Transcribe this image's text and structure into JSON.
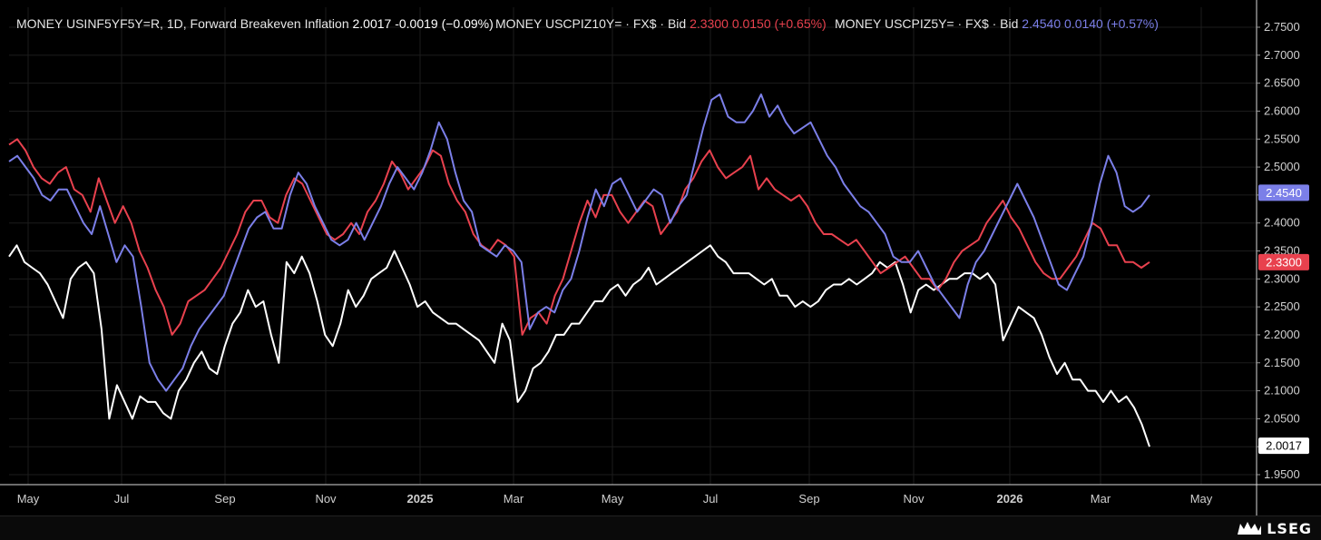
{
  "chart_data": {
    "type": "line",
    "x_axis_ticks": [
      "May",
      "Jul",
      "Sep",
      "Nov",
      "2025",
      "Mar",
      "May",
      "Jul",
      "Sep",
      "Nov",
      "2026",
      "Mar",
      "May"
    ],
    "y_axis_ticks": [
      "2.7500",
      "2.7000",
      "2.6500",
      "2.6000",
      "2.5500",
      "2.5000",
      "2.4500",
      "2.4000",
      "2.3500",
      "2.3000",
      "2.2500",
      "2.2000",
      "2.1500",
      "2.1000",
      "2.0500",
      "2.0000",
      "1.9500"
    ],
    "ylim": [
      1.94,
      2.77
    ],
    "grid": true,
    "legend": "top-left",
    "series": [
      {
        "name": "MONEY USINF5YF5Y=R, 1D, Forward Breakeven Inflation",
        "last": "2.0017",
        "change": "-0.0019",
        "change_pct": "(−0.09%)",
        "color": "#ffffff",
        "values": [
          2.34,
          2.36,
          2.33,
          2.32,
          2.31,
          2.29,
          2.26,
          2.23,
          2.3,
          2.32,
          2.33,
          2.31,
          2.21,
          2.05,
          2.11,
          2.08,
          2.05,
          2.09,
          2.08,
          2.08,
          2.06,
          2.05,
          2.1,
          2.12,
          2.15,
          2.17,
          2.14,
          2.13,
          2.18,
          2.22,
          2.24,
          2.28,
          2.25,
          2.26,
          2.2,
          2.15,
          2.33,
          2.31,
          2.34,
          2.31,
          2.26,
          2.2,
          2.18,
          2.22,
          2.28,
          2.25,
          2.27,
          2.3,
          2.31,
          2.32,
          2.35,
          2.32,
          2.29,
          2.25,
          2.26,
          2.24,
          2.23,
          2.22,
          2.22,
          2.21,
          2.2,
          2.19,
          2.17,
          2.15,
          2.22,
          2.19,
          2.08,
          2.1,
          2.14,
          2.15,
          2.17,
          2.2,
          2.2,
          2.22,
          2.22,
          2.24,
          2.26,
          2.26,
          2.28,
          2.29,
          2.27,
          2.29,
          2.3,
          2.32,
          2.29,
          2.3,
          2.31,
          2.32,
          2.33,
          2.34,
          2.35,
          2.36,
          2.34,
          2.33,
          2.31,
          2.31,
          2.31,
          2.3,
          2.29,
          2.3,
          2.27,
          2.27,
          2.25,
          2.26,
          2.25,
          2.26,
          2.28,
          2.29,
          2.29,
          2.3,
          2.29,
          2.3,
          2.31,
          2.33,
          2.32,
          2.33,
          2.29,
          2.24,
          2.28,
          2.29,
          2.28,
          2.29,
          2.3,
          2.3,
          2.31,
          2.31,
          2.3,
          2.31,
          2.29,
          2.19,
          2.22,
          2.25,
          2.24,
          2.23,
          2.2,
          2.16,
          2.13,
          2.15,
          2.12,
          2.12,
          2.1,
          2.1,
          2.08,
          2.1,
          2.08,
          2.09,
          2.07,
          2.04,
          2.0
        ]
      },
      {
        "name": "MONEY USCPIZ10Y= · FX$ · Bid",
        "last": "2.3300",
        "change": "0.0150",
        "change_pct": "(+0.65%)",
        "color": "#e8414e",
        "values": [
          2.54,
          2.55,
          2.53,
          2.5,
          2.48,
          2.47,
          2.49,
          2.5,
          2.46,
          2.45,
          2.42,
          2.48,
          2.44,
          2.4,
          2.43,
          2.4,
          2.35,
          2.32,
          2.28,
          2.25,
          2.2,
          2.22,
          2.26,
          2.27,
          2.28,
          2.3,
          2.32,
          2.35,
          2.38,
          2.42,
          2.44,
          2.44,
          2.41,
          2.4,
          2.45,
          2.48,
          2.47,
          2.44,
          2.41,
          2.38,
          2.37,
          2.38,
          2.4,
          2.38,
          2.42,
          2.44,
          2.47,
          2.51,
          2.49,
          2.46,
          2.48,
          2.5,
          2.53,
          2.52,
          2.47,
          2.44,
          2.42,
          2.38,
          2.36,
          2.35,
          2.37,
          2.36,
          2.34,
          2.2,
          2.23,
          2.24,
          2.22,
          2.27,
          2.3,
          2.35,
          2.4,
          2.44,
          2.41,
          2.45,
          2.45,
          2.42,
          2.4,
          2.42,
          2.44,
          2.43,
          2.38,
          2.4,
          2.42,
          2.46,
          2.48,
          2.51,
          2.53,
          2.5,
          2.48,
          2.49,
          2.5,
          2.52,
          2.46,
          2.48,
          2.46,
          2.45,
          2.44,
          2.45,
          2.43,
          2.4,
          2.38,
          2.38,
          2.37,
          2.36,
          2.37,
          2.35,
          2.33,
          2.31,
          2.32,
          2.33,
          2.34,
          2.32,
          2.3,
          2.3,
          2.28,
          2.3,
          2.33,
          2.35,
          2.36,
          2.37,
          2.4,
          2.42,
          2.44,
          2.41,
          2.39,
          2.36,
          2.33,
          2.31,
          2.3,
          2.3,
          2.32,
          2.34,
          2.37,
          2.4,
          2.39,
          2.36,
          2.36,
          2.33,
          2.33,
          2.32,
          2.33
        ]
      },
      {
        "name": "MONEY USCPIZ5Y= · FX$ · Bid",
        "last": "2.4540",
        "change": "0.0140",
        "change_pct": "(+0.57%)",
        "color": "#7b7fe8",
        "values": [
          2.51,
          2.52,
          2.5,
          2.48,
          2.45,
          2.44,
          2.46,
          2.46,
          2.43,
          2.4,
          2.38,
          2.43,
          2.38,
          2.33,
          2.36,
          2.34,
          2.25,
          2.15,
          2.12,
          2.1,
          2.12,
          2.14,
          2.18,
          2.21,
          2.23,
          2.25,
          2.27,
          2.31,
          2.35,
          2.39,
          2.41,
          2.42,
          2.39,
          2.39,
          2.45,
          2.49,
          2.47,
          2.43,
          2.4,
          2.37,
          2.36,
          2.37,
          2.4,
          2.37,
          2.4,
          2.43,
          2.47,
          2.5,
          2.48,
          2.46,
          2.49,
          2.53,
          2.58,
          2.55,
          2.49,
          2.44,
          2.42,
          2.36,
          2.35,
          2.34,
          2.36,
          2.35,
          2.33,
          2.21,
          2.24,
          2.25,
          2.24,
          2.28,
          2.3,
          2.35,
          2.41,
          2.46,
          2.43,
          2.47,
          2.48,
          2.45,
          2.42,
          2.44,
          2.46,
          2.45,
          2.4,
          2.43,
          2.45,
          2.51,
          2.57,
          2.62,
          2.63,
          2.59,
          2.58,
          2.58,
          2.6,
          2.63,
          2.59,
          2.61,
          2.58,
          2.56,
          2.57,
          2.58,
          2.55,
          2.52,
          2.5,
          2.47,
          2.45,
          2.43,
          2.42,
          2.4,
          2.38,
          2.34,
          2.33,
          2.33,
          2.35,
          2.32,
          2.29,
          2.27,
          2.25,
          2.23,
          2.29,
          2.33,
          2.35,
          2.38,
          2.41,
          2.44,
          2.47,
          2.44,
          2.41,
          2.37,
          2.33,
          2.29,
          2.28,
          2.31,
          2.34,
          2.4,
          2.47,
          2.52,
          2.49,
          2.43,
          2.42,
          2.43,
          2.45
        ]
      }
    ]
  },
  "branding": {
    "logo_text": "LSEG"
  }
}
